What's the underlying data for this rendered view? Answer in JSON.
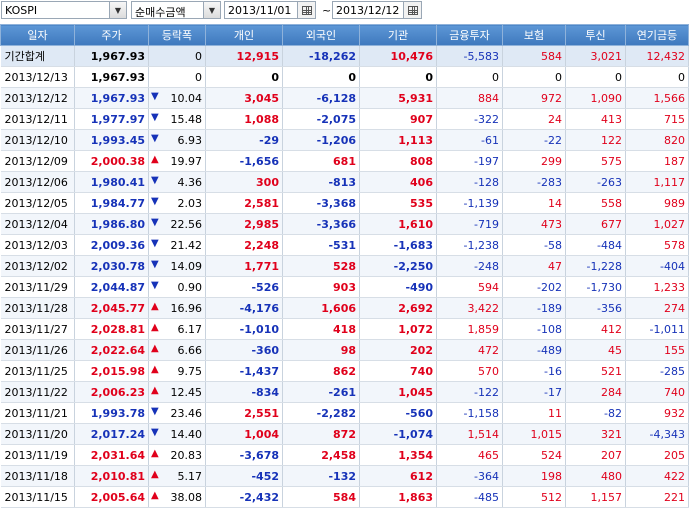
{
  "toolbar": {
    "market": "KOSPI",
    "sort": "순매수금액",
    "from": "2013/11/01",
    "to": "2013/12/12",
    "sep": "~"
  },
  "columns": [
    "일자",
    "주가",
    "등락폭",
    "개인",
    "외국인",
    "기관",
    "금융투자",
    "보험",
    "투신",
    "연기금등"
  ],
  "rows": [
    {
      "date": "기간합계",
      "price": "1,967.93",
      "dir": "",
      "chg": "0",
      "indiv": "12,915",
      "foreign": "-18,262",
      "inst": "10,476",
      "fin": "-5,583",
      "ins": "584",
      "trust": "3,021",
      "pension": "12,432"
    },
    {
      "date": "2013/12/13",
      "price": "1,967.93",
      "dir": "",
      "chg": "0",
      "indiv": "0",
      "foreign": "0",
      "inst": "0",
      "fin": "0",
      "ins": "0",
      "trust": "0",
      "pension": "0"
    },
    {
      "date": "2013/12/12",
      "price": "1,967.93",
      "dir": "down",
      "chg": "10.04",
      "indiv": "3,045",
      "foreign": "-6,128",
      "inst": "5,931",
      "fin": "884",
      "ins": "972",
      "trust": "1,090",
      "pension": "1,566"
    },
    {
      "date": "2013/12/11",
      "price": "1,977.97",
      "dir": "down",
      "chg": "15.48",
      "indiv": "1,088",
      "foreign": "-2,075",
      "inst": "907",
      "fin": "-322",
      "ins": "24",
      "trust": "413",
      "pension": "715"
    },
    {
      "date": "2013/12/10",
      "price": "1,993.45",
      "dir": "down",
      "chg": "6.93",
      "indiv": "-29",
      "foreign": "-1,206",
      "inst": "1,113",
      "fin": "-61",
      "ins": "-22",
      "trust": "122",
      "pension": "820"
    },
    {
      "date": "2013/12/09",
      "price": "2,000.38",
      "dir": "up",
      "chg": "19.97",
      "indiv": "-1,656",
      "foreign": "681",
      "inst": "808",
      "fin": "-197",
      "ins": "299",
      "trust": "575",
      "pension": "187"
    },
    {
      "date": "2013/12/06",
      "price": "1,980.41",
      "dir": "down",
      "chg": "4.36",
      "indiv": "300",
      "foreign": "-813",
      "inst": "406",
      "fin": "-128",
      "ins": "-283",
      "trust": "-263",
      "pension": "1,117"
    },
    {
      "date": "2013/12/05",
      "price": "1,984.77",
      "dir": "down",
      "chg": "2.03",
      "indiv": "2,581",
      "foreign": "-3,368",
      "inst": "535",
      "fin": "-1,139",
      "ins": "14",
      "trust": "558",
      "pension": "989"
    },
    {
      "date": "2013/12/04",
      "price": "1,986.80",
      "dir": "down",
      "chg": "22.56",
      "indiv": "2,985",
      "foreign": "-3,366",
      "inst": "1,610",
      "fin": "-719",
      "ins": "473",
      "trust": "677",
      "pension": "1,027"
    },
    {
      "date": "2013/12/03",
      "price": "2,009.36",
      "dir": "down",
      "chg": "21.42",
      "indiv": "2,248",
      "foreign": "-531",
      "inst": "-1,683",
      "fin": "-1,238",
      "ins": "-58",
      "trust": "-484",
      "pension": "578"
    },
    {
      "date": "2013/12/02",
      "price": "2,030.78",
      "dir": "down",
      "chg": "14.09",
      "indiv": "1,771",
      "foreign": "528",
      "inst": "-2,250",
      "fin": "-248",
      "ins": "47",
      "trust": "-1,228",
      "pension": "-404"
    },
    {
      "date": "2013/11/29",
      "price": "2,044.87",
      "dir": "down",
      "chg": "0.90",
      "indiv": "-526",
      "foreign": "903",
      "inst": "-490",
      "fin": "594",
      "ins": "-202",
      "trust": "-1,730",
      "pension": "1,233"
    },
    {
      "date": "2013/11/28",
      "price": "2,045.77",
      "dir": "up",
      "chg": "16.96",
      "indiv": "-4,176",
      "foreign": "1,606",
      "inst": "2,692",
      "fin": "3,422",
      "ins": "-189",
      "trust": "-356",
      "pension": "274"
    },
    {
      "date": "2013/11/27",
      "price": "2,028.81",
      "dir": "up",
      "chg": "6.17",
      "indiv": "-1,010",
      "foreign": "418",
      "inst": "1,072",
      "fin": "1,859",
      "ins": "-108",
      "trust": "412",
      "pension": "-1,011"
    },
    {
      "date": "2013/11/26",
      "price": "2,022.64",
      "dir": "up",
      "chg": "6.66",
      "indiv": "-360",
      "foreign": "98",
      "inst": "202",
      "fin": "472",
      "ins": "-489",
      "trust": "45",
      "pension": "155"
    },
    {
      "date": "2013/11/25",
      "price": "2,015.98",
      "dir": "up",
      "chg": "9.75",
      "indiv": "-1,437",
      "foreign": "862",
      "inst": "740",
      "fin": "570",
      "ins": "-16",
      "trust": "521",
      "pension": "-285"
    },
    {
      "date": "2013/11/22",
      "price": "2,006.23",
      "dir": "up",
      "chg": "12.45",
      "indiv": "-834",
      "foreign": "-261",
      "inst": "1,045",
      "fin": "-122",
      "ins": "-17",
      "trust": "284",
      "pension": "740"
    },
    {
      "date": "2013/11/21",
      "price": "1,993.78",
      "dir": "down",
      "chg": "23.46",
      "indiv": "2,551",
      "foreign": "-2,282",
      "inst": "-560",
      "fin": "-1,158",
      "ins": "11",
      "trust": "-82",
      "pension": "932"
    },
    {
      "date": "2013/11/20",
      "price": "2,017.24",
      "dir": "down",
      "chg": "14.40",
      "indiv": "1,004",
      "foreign": "872",
      "inst": "-1,074",
      "fin": "1,514",
      "ins": "1,015",
      "trust": "321",
      "pension": "-4,343"
    },
    {
      "date": "2013/11/19",
      "price": "2,031.64",
      "dir": "up",
      "chg": "20.83",
      "indiv": "-3,678",
      "foreign": "2,458",
      "inst": "1,354",
      "fin": "465",
      "ins": "524",
      "trust": "207",
      "pension": "205"
    },
    {
      "date": "2013/11/18",
      "price": "2,010.81",
      "dir": "up",
      "chg": "5.17",
      "indiv": "-452",
      "foreign": "-132",
      "inst": "612",
      "fin": "-364",
      "ins": "198",
      "trust": "480",
      "pension": "422"
    },
    {
      "date": "2013/11/15",
      "price": "2,005.64",
      "dir": "up",
      "chg": "38.08",
      "indiv": "-2,432",
      "foreign": "584",
      "inst": "1,863",
      "fin": "-485",
      "ins": "512",
      "trust": "1,157",
      "pension": "221"
    }
  ]
}
